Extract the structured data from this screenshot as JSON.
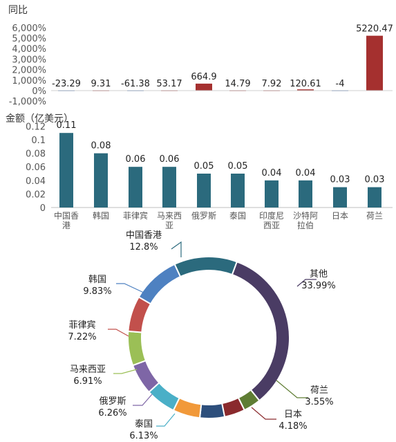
{
  "chart_data": [
    {
      "type": "bar",
      "title": "同比",
      "categories": [
        "中国香港",
        "韩国",
        "菲律宾",
        "马来西亚",
        "俄罗斯",
        "泰国",
        "印度尼西亚",
        "沙特阿拉伯",
        "日本",
        "荷兰"
      ],
      "values": [
        -23.29,
        9.31,
        -61.38,
        53.17,
        664.9,
        14.79,
        7.92,
        120.61,
        -4,
        5220.47
      ],
      "value_labels": [
        "-23.29",
        "9.31",
        "-61.38",
        "53.17",
        "664.9",
        "14.79",
        "7.92",
        "120.61",
        "-4",
        "5220.47"
      ],
      "yticks": [
        "6,000%",
        "5,000%",
        "4,000%",
        "3,000%",
        "2,000%",
        "1,000%",
        "0%",
        "-1,000%"
      ],
      "ylim": [
        -1000,
        6000
      ],
      "colors": {
        "pos": "#a5302f",
        "neg": "#2d68b0"
      }
    },
    {
      "type": "bar",
      "ylabel": "金额（亿美元）",
      "categories": [
        "中国香港",
        "韩国",
        "菲律宾",
        "马来西亚",
        "俄罗斯",
        "泰国",
        "印度尼西亚",
        "沙特阿拉伯",
        "日本",
        "荷兰"
      ],
      "category_lines": [
        [
          "中国香",
          "港"
        ],
        [
          "韩国"
        ],
        [
          "菲律宾"
        ],
        [
          "马来西",
          "亚"
        ],
        [
          "俄罗斯"
        ],
        [
          "泰国"
        ],
        [
          "印度尼",
          "西亚"
        ],
        [
          "沙特阿",
          "拉伯"
        ],
        [
          "日本"
        ],
        [
          "荷兰"
        ]
      ],
      "values": [
        0.11,
        0.08,
        0.06,
        0.06,
        0.05,
        0.05,
        0.04,
        0.04,
        0.03,
        0.03
      ],
      "value_labels": [
        "0.11",
        "0.08",
        "0.06",
        "0.06",
        "0.05",
        "0.05",
        "0.04",
        "0.04",
        "0.03",
        "0.03"
      ],
      "yticks": [
        "0.12",
        "0.1",
        "0.08",
        "0.06",
        "0.04",
        "0.02",
        "0"
      ],
      "ylim": [
        0,
        0.12
      ],
      "color": "#2b6a7d"
    },
    {
      "type": "pie",
      "donut": true,
      "slices": [
        {
          "name": "中国香港",
          "value": 12.8,
          "label": "12.8%",
          "color": "#2b6a7d"
        },
        {
          "name": "其他",
          "value": 33.99,
          "label": "33.99%",
          "color": "#4a3c64"
        },
        {
          "name": "荷兰",
          "value": 3.55,
          "label": "3.55%",
          "color": "#5f7d34"
        },
        {
          "name": "日本",
          "value": 4.18,
          "label": "4.18%",
          "color": "#8a2a2d"
        },
        {
          "name": "other-a",
          "value": 5.0,
          "label": "",
          "color": "#2d4f7c"
        },
        {
          "name": "other-b",
          "value": 5.5,
          "label": "",
          "color": "#f1993a"
        },
        {
          "name": "泰国",
          "value": 6.13,
          "label": "6.13%",
          "color": "#4aafc7"
        },
        {
          "name": "俄罗斯",
          "value": 6.26,
          "label": "6.26%",
          "color": "#7e66a6"
        },
        {
          "name": "马来西亚",
          "value": 6.91,
          "label": "6.91%",
          "color": "#9bbf56"
        },
        {
          "name": "菲律宾",
          "value": 7.22,
          "label": "7.22%",
          "color": "#c2504c"
        },
        {
          "name": "韩国",
          "value": 9.83,
          "label": "9.83%",
          "color": "#4e81c1"
        }
      ]
    }
  ]
}
